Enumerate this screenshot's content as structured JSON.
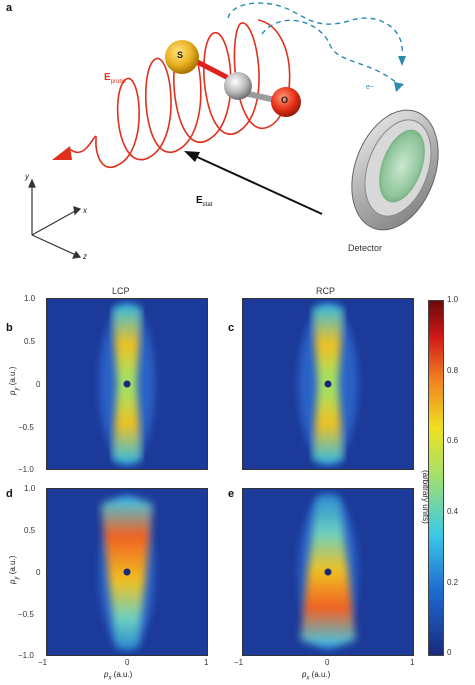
{
  "figure": {
    "panel_a": {
      "letter": "a",
      "e_probe_main": "E",
      "e_probe_sub": "probe",
      "e_stat_main": "E",
      "e_stat_sub": "stat",
      "detector_label": "Detector",
      "electron_label": "e−",
      "atom_s": "S",
      "atom_o": "O",
      "axes": {
        "x": "x",
        "y": "y",
        "z": "z"
      }
    },
    "panels": [
      {
        "letter": "b",
        "title": "LCP",
        "shape": "hourglass"
      },
      {
        "letter": "c",
        "title": "RCP",
        "shape": "hourglass"
      },
      {
        "letter": "d",
        "title": "",
        "shape": "cone-up"
      },
      {
        "letter": "e",
        "title": "",
        "shape": "cone-down"
      }
    ],
    "y_label_main": "p",
    "y_label_sub": "y",
    "y_label_unit": " (a.u.)",
    "x_label_main": "p",
    "x_label_sub": "x",
    "x_label_unit": " (a.u.)",
    "y_ticks": [
      "1.0",
      "0.5",
      "0",
      "−0.5",
      "−1.0"
    ],
    "x_ticks": [
      "−1",
      "0",
      "1"
    ],
    "colorbar": {
      "label": "(arbitrary units)",
      "ticks": [
        "1.0",
        "0.8",
        "0.6",
        "0.4",
        "0.2",
        "0"
      ]
    }
  }
}
